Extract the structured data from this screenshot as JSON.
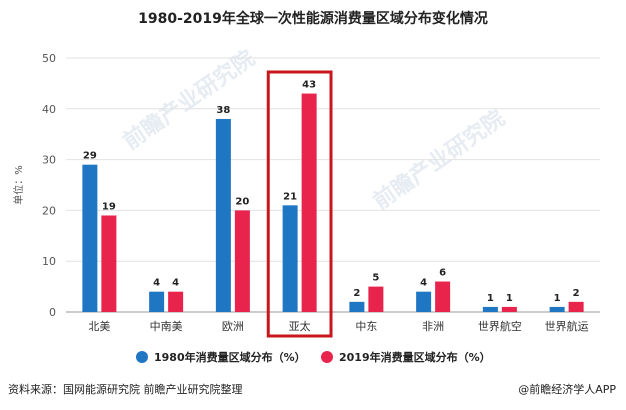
{
  "chart_data": {
    "type": "bar",
    "title": "1980-2019年全球一次性能源消费量区域分布变化情况",
    "categories": [
      "北美",
      "中南美",
      "欧洲",
      "亚太",
      "中东",
      "非洲",
      "世界航空",
      "世界航运"
    ],
    "series": [
      {
        "name": "1980年消费量区域分布（%）",
        "color": "#1f77c4",
        "values": [
          29,
          4,
          38,
          21,
          2,
          4,
          1,
          1
        ]
      },
      {
        "name": "2019年消费量区域分布（%）",
        "color": "#e8244c",
        "values": [
          19,
          4,
          20,
          43,
          5,
          6,
          1,
          2
        ]
      }
    ],
    "ylabel": "单位：%",
    "ylim": [
      0,
      50
    ],
    "yticks": [
      0,
      10,
      20,
      30,
      40,
      50
    ],
    "highlight_category": "亚太",
    "highlight_color": "#c8161d"
  },
  "footer": {
    "source": "资料来源：国网能源研究院 前瞻产业研究院整理",
    "brand": "@前瞻经济学人APP"
  },
  "watermark": {
    "text": "前瞻产业研究院"
  }
}
